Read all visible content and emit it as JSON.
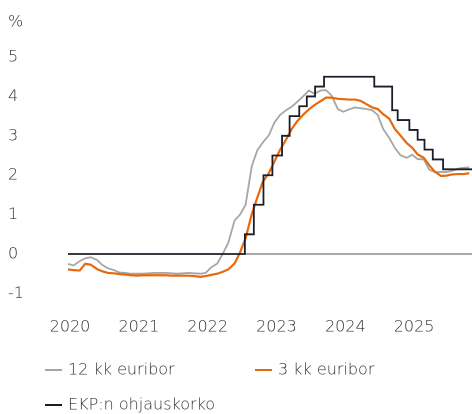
{
  "chart_data": {
    "type": "line",
    "y_label": "%",
    "xlim": [
      2020,
      2025.87
    ],
    "xticks": [
      2020,
      2021,
      2022,
      2023,
      2024,
      2025
    ],
    "ylim": [
      -1.5,
      5.6
    ],
    "yticks": [
      -1,
      0,
      1,
      2,
      3,
      4,
      5
    ],
    "x": [
      2020.0,
      2020.08,
      2020.17,
      2020.25,
      2020.33,
      2020.42,
      2020.5,
      2020.58,
      2020.67,
      2020.75,
      2020.83,
      2020.92,
      2021.0,
      2021.08,
      2021.17,
      2021.25,
      2021.33,
      2021.42,
      2021.5,
      2021.58,
      2021.67,
      2021.75,
      2021.83,
      2021.92,
      2022.0,
      2022.08,
      2022.17,
      2022.25,
      2022.33,
      2022.42,
      2022.5,
      2022.58,
      2022.67,
      2022.75,
      2022.83,
      2022.92,
      2023.0,
      2023.08,
      2023.17,
      2023.25,
      2023.33,
      2023.42,
      2023.5,
      2023.58,
      2023.67,
      2023.75,
      2023.83,
      2023.92,
      2024.0,
      2024.08,
      2024.17,
      2024.25,
      2024.33,
      2024.42,
      2024.5,
      2024.58,
      2024.67,
      2024.75,
      2024.83,
      2024.92,
      2025.0,
      2025.08,
      2025.17,
      2025.25,
      2025.33,
      2025.42,
      2025.5,
      2025.58,
      2025.67,
      2025.75,
      2025.83
    ],
    "series": [
      {
        "name": "12 kk euribor",
        "color": "#a6a6a6",
        "values": [
          -0.25,
          -0.29,
          -0.18,
          -0.11,
          -0.08,
          -0.15,
          -0.28,
          -0.36,
          -0.41,
          -0.47,
          -0.48,
          -0.5,
          -0.5,
          -0.5,
          -0.49,
          -0.48,
          -0.48,
          -0.48,
          -0.49,
          -0.5,
          -0.49,
          -0.48,
          -0.49,
          -0.5,
          -0.48,
          -0.34,
          -0.24,
          0.01,
          0.29,
          0.85,
          1.0,
          1.25,
          2.23,
          2.63,
          2.83,
          3.02,
          3.34,
          3.53,
          3.65,
          3.74,
          3.86,
          4.01,
          4.15,
          4.07,
          4.15,
          4.16,
          4.02,
          3.68,
          3.61,
          3.67,
          3.72,
          3.7,
          3.68,
          3.65,
          3.53,
          3.17,
          2.94,
          2.69,
          2.51,
          2.44,
          2.52,
          2.41,
          2.4,
          2.14,
          2.08,
          2.08,
          2.08,
          2.11,
          2.17,
          2.19,
          2.2
        ]
      },
      {
        "name": "3 kk euribor",
        "color": "#e8690b",
        "values": [
          -0.39,
          -0.41,
          -0.42,
          -0.25,
          -0.27,
          -0.38,
          -0.44,
          -0.48,
          -0.49,
          -0.51,
          -0.52,
          -0.54,
          -0.55,
          -0.54,
          -0.54,
          -0.54,
          -0.54,
          -0.54,
          -0.55,
          -0.55,
          -0.55,
          -0.55,
          -0.56,
          -0.58,
          -0.56,
          -0.53,
          -0.5,
          -0.45,
          -0.39,
          -0.24,
          0.04,
          0.4,
          1.01,
          1.43,
          1.83,
          2.06,
          2.35,
          2.64,
          2.91,
          3.17,
          3.37,
          3.54,
          3.67,
          3.78,
          3.88,
          3.97,
          3.97,
          3.94,
          3.93,
          3.92,
          3.92,
          3.89,
          3.81,
          3.72,
          3.68,
          3.55,
          3.43,
          3.17,
          3.01,
          2.82,
          2.7,
          2.53,
          2.44,
          2.25,
          2.09,
          1.98,
          1.99,
          2.02,
          2.03,
          2.03,
          2.05
        ]
      },
      {
        "name": "EKP:n ohjauskorko",
        "color": "#1c1c2b",
        "x": [
          2020,
          2022.57,
          2022.57,
          2022.7,
          2022.7,
          2022.84,
          2022.84,
          2022.97,
          2022.97,
          2023.11,
          2023.11,
          2023.22,
          2023.22,
          2023.36,
          2023.36,
          2023.47,
          2023.47,
          2023.59,
          2023.59,
          2023.72,
          2023.72,
          2024.45,
          2024.45,
          2024.71,
          2024.71,
          2024.79,
          2024.79,
          2024.96,
          2024.96,
          2025.08,
          2025.08,
          2025.18,
          2025.18,
          2025.3,
          2025.3,
          2025.45,
          2025.45,
          2025.87
        ],
        "values": [
          0,
          0,
          0.5,
          0.5,
          1.25,
          1.25,
          2.0,
          2.0,
          2.5,
          2.5,
          3.0,
          3.0,
          3.5,
          3.5,
          3.75,
          3.75,
          4.0,
          4.0,
          4.25,
          4.25,
          4.5,
          4.5,
          4.25,
          4.25,
          3.65,
          3.65,
          3.4,
          3.4,
          3.15,
          3.15,
          2.9,
          2.9,
          2.65,
          2.65,
          2.4,
          2.4,
          2.15,
          2.15
        ]
      }
    ]
  }
}
